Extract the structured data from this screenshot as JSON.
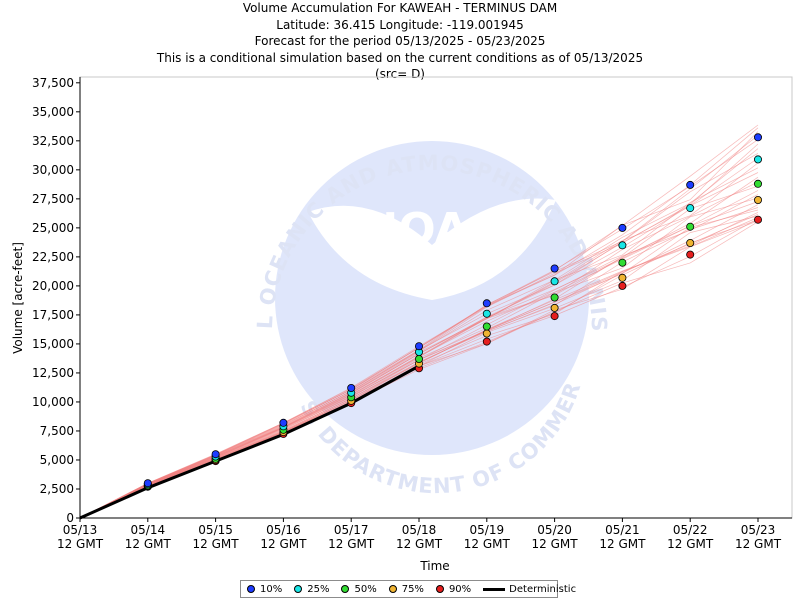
{
  "header": {
    "line1": "Volume Accumulation For KAWEAH - TERMINUS DAM",
    "line2": "Latitude: 36.415 Longitude: -119.001945",
    "line3": "Forecast for the period 05/13/2025 - 05/23/2025",
    "line4": "This is a conditional simulation based on the current conditions as of 05/13/2025",
    "line5": "(src= D)"
  },
  "watermark": {
    "logo_text": "NOAA",
    "ring_top": "NATIONAL OCEANIC AND ATMOSPHERIC ADMINISTRATION",
    "ring_bottom": "U.S. DEPARTMENT OF COMMERCE"
  },
  "colors": {
    "p10": "#1e3cff",
    "p25": "#19e6e6",
    "p50": "#32dc32",
    "p75": "#f0b432",
    "p90": "#e61e1e",
    "deterministic": "#000000",
    "ensemble": "#f08080",
    "logo_bg": "#dfe6fb"
  },
  "chart_data": {
    "type": "line",
    "xlabel": "Time",
    "ylabel": "Volume [acre-feet]",
    "x_tick_labels": [
      [
        "05/13",
        "12 GMT"
      ],
      [
        "05/14",
        "12 GMT"
      ],
      [
        "05/15",
        "12 GMT"
      ],
      [
        "05/16",
        "12 GMT"
      ],
      [
        "05/17",
        "12 GMT"
      ],
      [
        "05/18",
        "12 GMT"
      ],
      [
        "05/19",
        "12 GMT"
      ],
      [
        "05/20",
        "12 GMT"
      ],
      [
        "05/21",
        "12 GMT"
      ],
      [
        "05/22",
        "12 GMT"
      ],
      [
        "05/23",
        "12 GMT"
      ]
    ],
    "y_tick_labels": [
      "0",
      "2,500",
      "5,000",
      "7,500",
      "10,000",
      "12,500",
      "15,000",
      "17,500",
      "20,000",
      "22,500",
      "25,000",
      "27,500",
      "30,000",
      "32,500",
      "35,000",
      "37,500"
    ],
    "ylim": [
      0,
      38000
    ],
    "grid": false,
    "legend_position": "bottom",
    "series": [
      {
        "name": "10%",
        "x": [
          1,
          2,
          3,
          4,
          5,
          6,
          7,
          8,
          9,
          10
        ],
        "values": [
          3000,
          5500,
          8200,
          11200,
          14800,
          18500,
          21500,
          25000,
          28700,
          32800
        ]
      },
      {
        "name": "25%",
        "x": [
          1,
          2,
          3,
          4,
          5,
          6,
          7,
          8,
          9,
          10
        ],
        "values": [
          2900,
          5300,
          7900,
          10800,
          14300,
          17600,
          20400,
          23500,
          26700,
          30900
        ]
      },
      {
        "name": "50%",
        "x": [
          1,
          2,
          3,
          4,
          5,
          6,
          7,
          8,
          9,
          10
        ],
        "values": [
          2800,
          5100,
          7600,
          10400,
          13700,
          16500,
          19000,
          22000,
          25100,
          28800
        ]
      },
      {
        "name": "75%",
        "x": [
          1,
          2,
          3,
          4,
          5,
          6,
          7,
          8,
          9,
          10
        ],
        "values": [
          2750,
          5000,
          7400,
          10100,
          13300,
          15900,
          18100,
          20700,
          23700,
          27400
        ]
      },
      {
        "name": "90%",
        "x": [
          1,
          2,
          3,
          4,
          5,
          6,
          7,
          8,
          9,
          10
        ],
        "values": [
          2700,
          4900,
          7250,
          9900,
          12900,
          15200,
          17400,
          20000,
          22700,
          25700
        ]
      },
      {
        "name": "Deterministic",
        "x": [
          0,
          1,
          2,
          3,
          4,
          5
        ],
        "values": [
          0,
          2600,
          4900,
          7200,
          9900,
          13100
        ]
      }
    ]
  }
}
